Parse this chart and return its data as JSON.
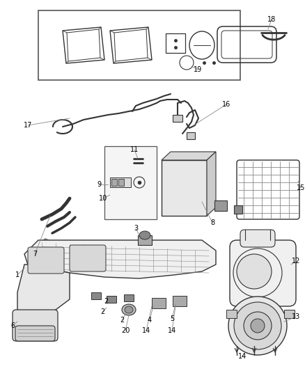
{
  "bg_color": "#ffffff",
  "line_color": "#555555",
  "dark": "#333333",
  "gray": "#888888",
  "lgray": "#cccccc",
  "dgray": "#666666"
}
